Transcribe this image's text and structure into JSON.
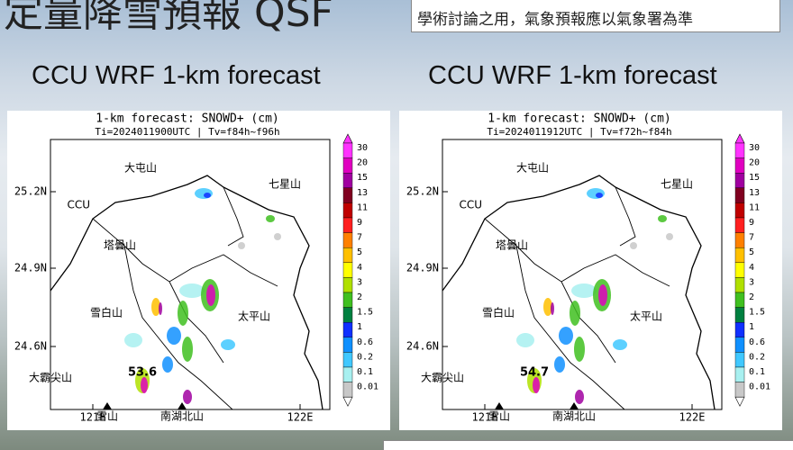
{
  "header": {
    "title": "定量降雪預報 QSF",
    "note": "學術討論之用，氣象預報應以氣象署為準"
  },
  "panels": [
    {
      "heading": "CCU WRF 1-km forecast",
      "map_title": "1-km forecast: SNOWD+ (cm)",
      "map_subtitle": "Ti=2024011900UTC | Tv=f84h~f96h",
      "map_labels": [
        "大屯山",
        "七星山",
        "CCU",
        "塔曇山",
        "雪白山",
        "太平山",
        "大霸尖山",
        "53.6",
        "雪山",
        "南湖北山"
      ]
    },
    {
      "heading": "CCU WRF 1-km forecast",
      "map_title": "1-km forecast: SNOWD+ (cm)",
      "map_subtitle": "Ti=2024011912UTC | Tv=f72h~f84h",
      "map_labels": [
        "大屯山",
        "七星山",
        "CCU",
        "塔曇山",
        "雪白山",
        "太平山",
        "大霸尖山",
        "54.7",
        "雪山",
        "南湖北山"
      ]
    }
  ],
  "lat_ticks": [
    "25.2N",
    "24.9N",
    "24.6N"
  ],
  "lon_ticks": [
    "121E",
    "122E"
  ],
  "colorbar": [
    {
      "label": "30",
      "color": "#ff33ff"
    },
    {
      "label": "20",
      "color": "#e000c0"
    },
    {
      "label": "15",
      "color": "#a000a0"
    },
    {
      "label": "13",
      "color": "#800020"
    },
    {
      "label": "11",
      "color": "#c00000"
    },
    {
      "label": "9",
      "color": "#ff2020"
    },
    {
      "label": "7",
      "color": "#ff8000"
    },
    {
      "label": "5",
      "color": "#ffc000"
    },
    {
      "label": "4",
      "color": "#ffff00"
    },
    {
      "label": "3",
      "color": "#b0e000"
    },
    {
      "label": "2",
      "color": "#40c020"
    },
    {
      "label": "1.5",
      "color": "#008040"
    },
    {
      "label": "1",
      "color": "#1030ff"
    },
    {
      "label": "0.6",
      "color": "#1090ff"
    },
    {
      "label": "0.2",
      "color": "#40c8ff"
    },
    {
      "label": "0.1",
      "color": "#a8f0f0"
    },
    {
      "label": "0.01",
      "color": "#c8c8c8"
    }
  ]
}
